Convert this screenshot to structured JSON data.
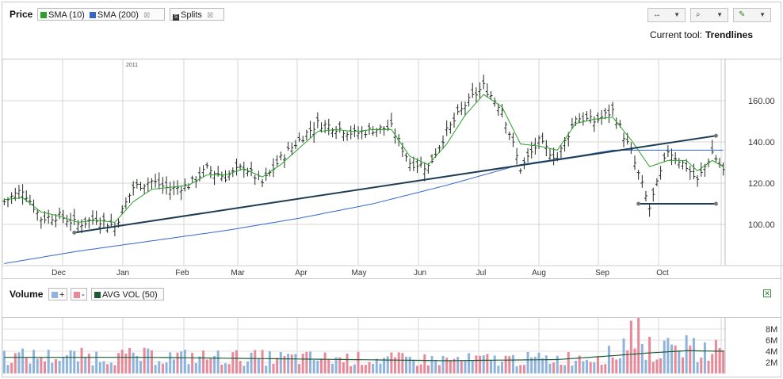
{
  "price_panel": {
    "title": "Price",
    "indicators": [
      {
        "label": "SMA (10)",
        "color": "#2ca02c"
      },
      {
        "label": "SMA (200)",
        "color": "#3366cc"
      }
    ],
    "splits_label": "Splits",
    "current_tool_label": "Current tool:",
    "current_tool_value": "Trendlines"
  },
  "volume_panel": {
    "title": "Volume",
    "up_label": "+",
    "down_label": "-",
    "avg_label": "AVG VOL (50)",
    "colors": {
      "up": "#8fb4dc",
      "down": "#e8899a",
      "avg": "#1d5c33"
    }
  },
  "toolbar": {
    "icons": [
      "pan-icon",
      "zoom-icon",
      "draw-pencil-icon"
    ]
  },
  "chart_data": [
    {
      "type": "candlestick",
      "title": "Price",
      "year_label": "2011",
      "x_ticks": [
        "Dec",
        "Jan",
        "Feb",
        "Mar",
        "Apr",
        "May",
        "Jun",
        "Jul",
        "Aug",
        "Sep",
        "Oct"
      ],
      "y_ticks": [
        "100.00",
        "120.00",
        "140.00",
        "160.00"
      ],
      "ylim": [
        80,
        180
      ],
      "grid": true,
      "price_path": [
        [
          0,
          111
        ],
        [
          5,
          117
        ],
        [
          10,
          103
        ],
        [
          15,
          104
        ],
        [
          20,
          100
        ],
        [
          25,
          103
        ],
        [
          30,
          99
        ],
        [
          35,
          118
        ],
        [
          40,
          121
        ],
        [
          45,
          117
        ],
        [
          50,
          119
        ],
        [
          55,
          127
        ],
        [
          60,
          123
        ],
        [
          65,
          128
        ],
        [
          70,
          120
        ],
        [
          75,
          132
        ],
        [
          80,
          141
        ],
        [
          85,
          149
        ],
        [
          90,
          147
        ],
        [
          95,
          144
        ],
        [
          100,
          146
        ],
        [
          105,
          147
        ],
        [
          110,
          130
        ],
        [
          115,
          128
        ],
        [
          120,
          145
        ],
        [
          125,
          158
        ],
        [
          130,
          167
        ],
        [
          135,
          156
        ],
        [
          140,
          127
        ],
        [
          145,
          140
        ],
        [
          150,
          132
        ],
        [
          155,
          152
        ],
        [
          160,
          150
        ],
        [
          165,
          155
        ],
        [
          170,
          135
        ],
        [
          175,
          108
        ],
        [
          180,
          136
        ],
        [
          185,
          128
        ],
        [
          188,
          121
        ],
        [
          192,
          135
        ],
        [
          195,
          126
        ]
      ],
      "sma10": [
        [
          0,
          112
        ],
        [
          5,
          113
        ],
        [
          10,
          106
        ],
        [
          15,
          104
        ],
        [
          20,
          101
        ],
        [
          25,
          102
        ],
        [
          30,
          101
        ],
        [
          35,
          111
        ],
        [
          40,
          117
        ],
        [
          45,
          118
        ],
        [
          50,
          119
        ],
        [
          55,
          124
        ],
        [
          60,
          124
        ],
        [
          65,
          127
        ],
        [
          70,
          123
        ],
        [
          75,
          129
        ],
        [
          80,
          137
        ],
        [
          85,
          145
        ],
        [
          90,
          146
        ],
        [
          95,
          145
        ],
        [
          100,
          146
        ],
        [
          105,
          146
        ],
        [
          110,
          133
        ],
        [
          115,
          129
        ],
        [
          120,
          139
        ],
        [
          125,
          153
        ],
        [
          130,
          163
        ],
        [
          135,
          157
        ],
        [
          140,
          139
        ],
        [
          145,
          138
        ],
        [
          150,
          136
        ],
        [
          155,
          149
        ],
        [
          160,
          151
        ],
        [
          165,
          152
        ],
        [
          170,
          141
        ],
        [
          175,
          128
        ],
        [
          180,
          131
        ],
        [
          185,
          131
        ],
        [
          188,
          126
        ],
        [
          192,
          131
        ],
        [
          195,
          128
        ]
      ],
      "sma200": [
        [
          0,
          81
        ],
        [
          20,
          87
        ],
        [
          40,
          92
        ],
        [
          60,
          97
        ],
        [
          80,
          103
        ],
        [
          100,
          110
        ],
        [
          120,
          119
        ],
        [
          140,
          129
        ],
        [
          155,
          133
        ],
        [
          165,
          136
        ],
        [
          175,
          136
        ],
        [
          185,
          136
        ],
        [
          192,
          136
        ]
      ],
      "trendlines": [
        {
          "from": [
            19,
            96
          ],
          "to": [
            193,
            143
          ]
        },
        {
          "from": [
            172,
            110
          ],
          "to": [
            193,
            110
          ]
        }
      ]
    },
    {
      "type": "bar",
      "title": "Volume",
      "y_ticks": [
        "2M",
        "4M",
        "6M",
        "8M"
      ],
      "ylim": [
        0,
        10
      ],
      "avg_vol": [
        [
          0,
          2.9
        ],
        [
          40,
          2.9
        ],
        [
          80,
          2.6
        ],
        [
          120,
          2.3
        ],
        [
          150,
          2.5
        ],
        [
          165,
          3.2
        ],
        [
          175,
          3.7
        ],
        [
          185,
          4.1
        ],
        [
          195,
          4.0
        ]
      ],
      "spikes": [
        {
          "x": 170,
          "v": 9.5
        },
        {
          "x": 172,
          "v": 10.0
        },
        {
          "x": 175,
          "v": 6.6
        },
        {
          "x": 168,
          "v": 6.3
        },
        {
          "x": 180,
          "v": 6.4
        },
        {
          "x": 185,
          "v": 6.9
        },
        {
          "x": 190,
          "v": 5.6
        },
        {
          "x": 192,
          "v": 3.5
        }
      ]
    }
  ]
}
